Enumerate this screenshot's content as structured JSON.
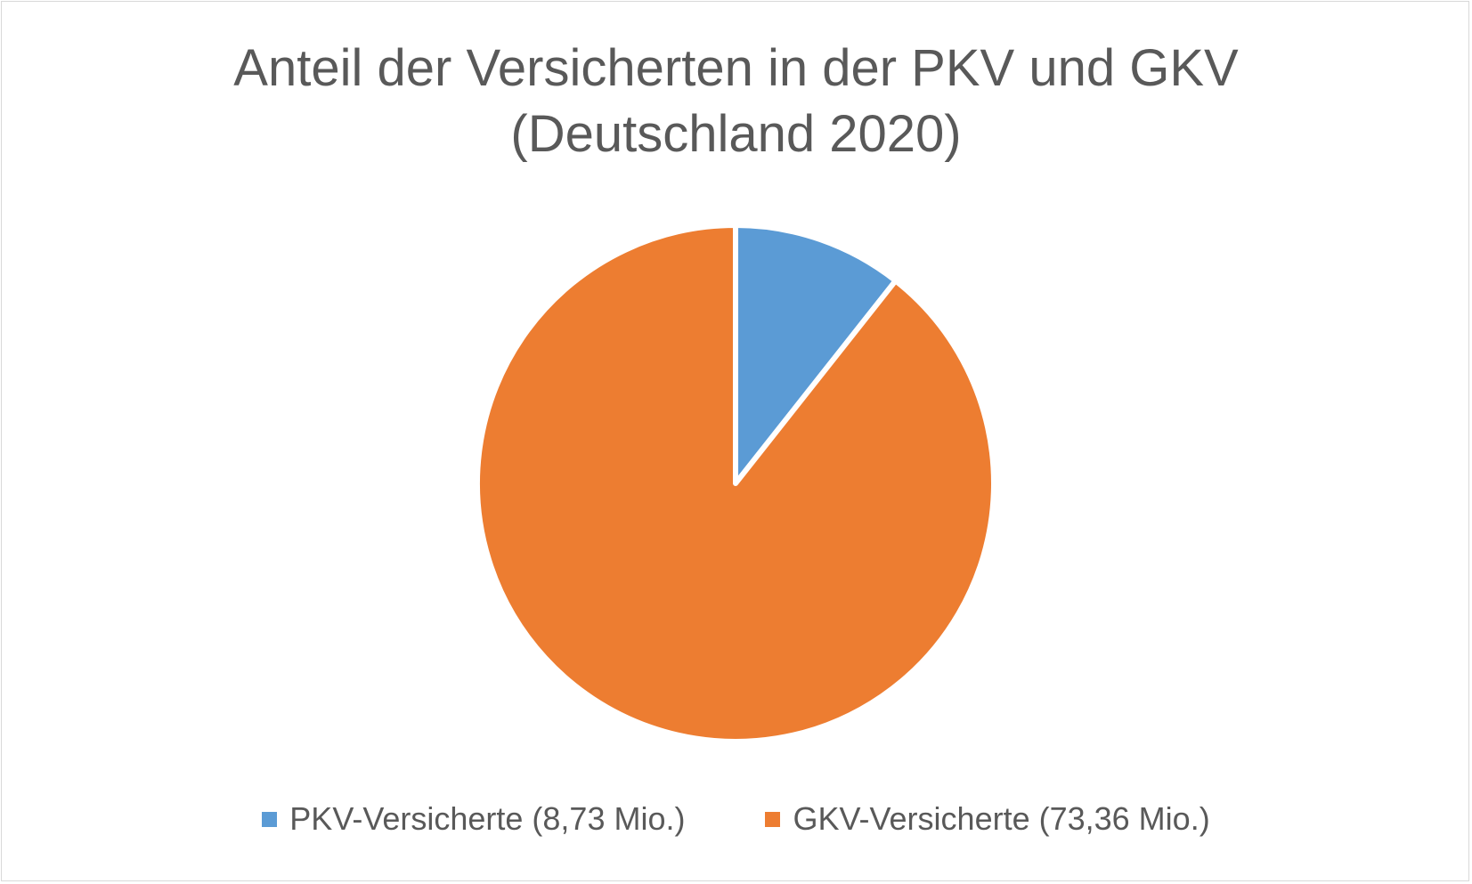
{
  "chart_data": {
    "type": "pie",
    "title": [
      "Anteil der Versicherten in der PKV und GKV",
      "(Deutschland 2020)"
    ],
    "categories": [
      "PKV-Versicherte (8,73 Mio.)",
      "GKV-Versicherte (73,36 Mio.)"
    ],
    "values": [
      8.73,
      73.36
    ],
    "colors": [
      "#5b9bd5",
      "#ed7d31"
    ],
    "start_angle": "top",
    "direction": "clockwise",
    "legend_position": "bottom"
  }
}
